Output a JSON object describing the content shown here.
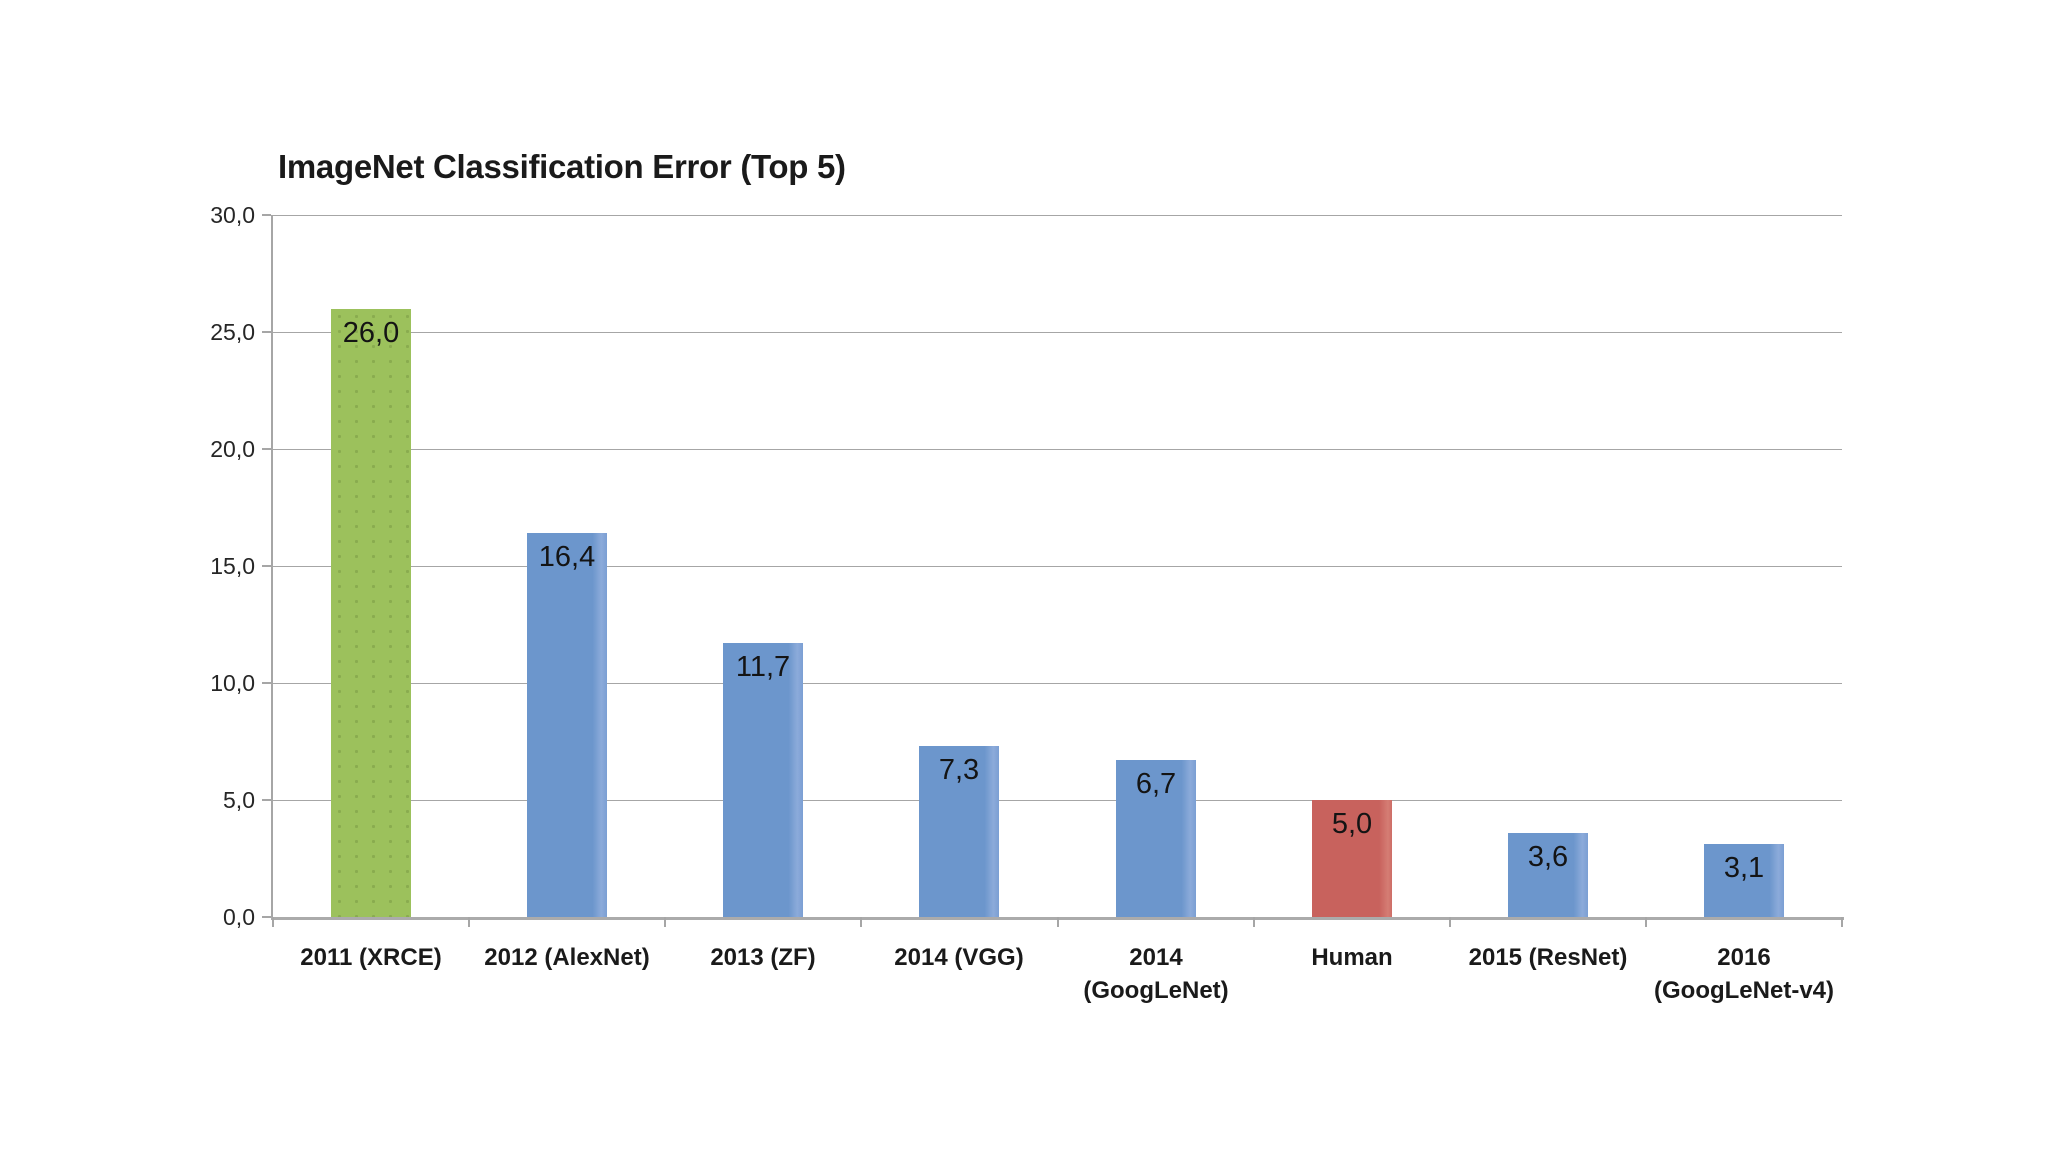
{
  "chart_data": {
    "type": "bar",
    "title": "ImageNet Classification Error (Top 5)",
    "xlabel": "",
    "ylabel": "",
    "ylim": [
      0,
      30
    ],
    "y_tick_labels": [
      "30,0",
      "25,0",
      "20,0",
      "15,0",
      "10,0",
      "5,0",
      "0,0"
    ],
    "grid": true,
    "legend": "none",
    "decimal_separator": ",",
    "categories": [
      "2011 (XRCE)",
      "2012 (AlexNet)",
      "2013 (ZF)",
      "2014 (VGG)",
      "2014\n(GoogLeNet)",
      "Human",
      "2015 (ResNet)",
      "2016\n(GoogLeNet-v4)"
    ],
    "values": [
      26.0,
      16.4,
      11.7,
      7.3,
      6.7,
      5.0,
      3.6,
      3.1
    ],
    "value_labels": [
      "26,0",
      "16,4",
      "11,7",
      "7,3",
      "6,7",
      "5,0",
      "3,6",
      "3,1"
    ],
    "bar_color_roles": [
      "highlight",
      "default",
      "default",
      "default",
      "default",
      "human",
      "default",
      "default"
    ],
    "palette": {
      "highlight": "#9CC15C",
      "default": "#6C96CC",
      "human": "#C8625D"
    },
    "gridline_color": "#A6A6A6",
    "axis_color": "#ABABAB",
    "value_label_color": "#141414",
    "background_color": "#FFFFFF"
  }
}
